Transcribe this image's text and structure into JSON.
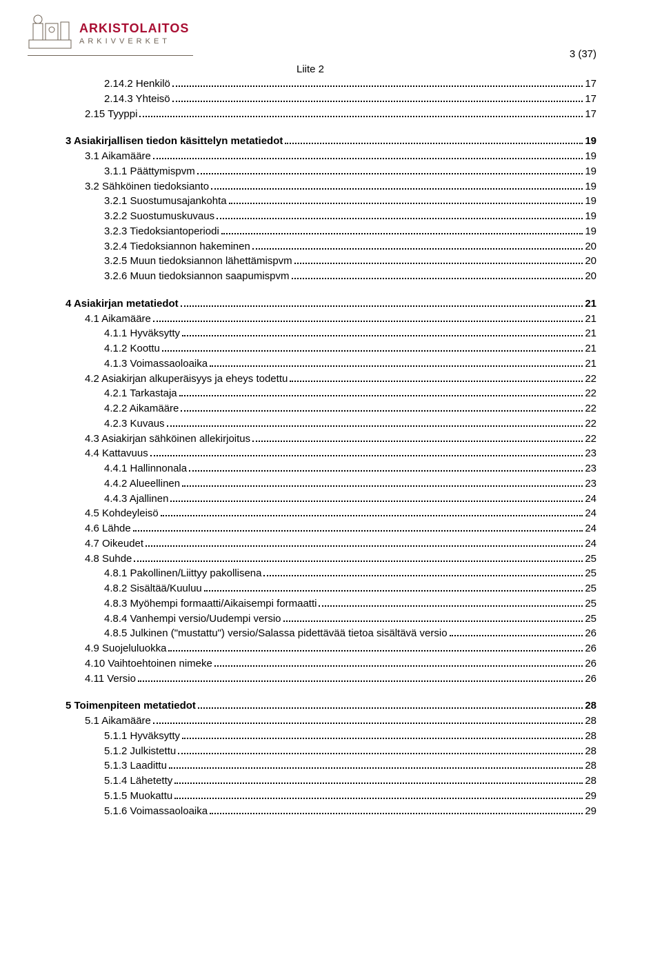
{
  "header": {
    "brand_title": "ARKISTOLAITOS",
    "brand_sub": "ARKIVVERKET",
    "logo_color": "#a80e32",
    "caption_color": "#6f6356"
  },
  "page_number": "3 (37)",
  "appendix_label": "Liite 2",
  "toc": [
    {
      "indent": 2,
      "label": "2.14.2 Henkilö",
      "page": "17",
      "bold": false,
      "section": false
    },
    {
      "indent": 2,
      "label": "2.14.3 Yhteisö",
      "page": "17",
      "bold": false,
      "section": false
    },
    {
      "indent": 1,
      "label": "2.15 Tyyppi",
      "page": "17",
      "bold": false,
      "section": false
    },
    {
      "indent": 0,
      "label": "3 Asiakirjallisen tiedon käsittelyn metatiedot",
      "page": "19",
      "bold": true,
      "section": true
    },
    {
      "indent": 1,
      "label": "3.1 Aikamääre",
      "page": "19",
      "bold": false,
      "section": false
    },
    {
      "indent": 2,
      "label": "3.1.1 Päättymispvm",
      "page": "19",
      "bold": false,
      "section": false
    },
    {
      "indent": 1,
      "label": "3.2 Sähköinen tiedoksianto",
      "page": "19",
      "bold": false,
      "section": false
    },
    {
      "indent": 2,
      "label": "3.2.1 Suostumusajankohta",
      "page": "19",
      "bold": false,
      "section": false
    },
    {
      "indent": 2,
      "label": "3.2.2 Suostumuskuvaus",
      "page": "19",
      "bold": false,
      "section": false
    },
    {
      "indent": 2,
      "label": "3.2.3 Tiedoksiantoperiodi",
      "page": "19",
      "bold": false,
      "section": false
    },
    {
      "indent": 2,
      "label": "3.2.4 Tiedoksiannon hakeminen",
      "page": "20",
      "bold": false,
      "section": false
    },
    {
      "indent": 2,
      "label": "3.2.5 Muun tiedoksiannon lähettämispvm",
      "page": "20",
      "bold": false,
      "section": false
    },
    {
      "indent": 2,
      "label": "3.2.6 Muun tiedoksiannon saapumispvm",
      "page": "20",
      "bold": false,
      "section": false
    },
    {
      "indent": 0,
      "label": "4 Asiakirjan metatiedot",
      "page": "21",
      "bold": true,
      "section": true
    },
    {
      "indent": 1,
      "label": "4.1 Aikamääre",
      "page": "21",
      "bold": false,
      "section": false
    },
    {
      "indent": 2,
      "label": "4.1.1 Hyväksytty",
      "page": "21",
      "bold": false,
      "section": false
    },
    {
      "indent": 2,
      "label": "4.1.2 Koottu",
      "page": "21",
      "bold": false,
      "section": false
    },
    {
      "indent": 2,
      "label": "4.1.3 Voimassaoloaika",
      "page": "21",
      "bold": false,
      "section": false
    },
    {
      "indent": 1,
      "label": "4.2 Asiakirjan alkuperäisyys ja eheys todettu",
      "page": "22",
      "bold": false,
      "section": false
    },
    {
      "indent": 2,
      "label": "4.2.1 Tarkastaja",
      "page": "22",
      "bold": false,
      "section": false
    },
    {
      "indent": 2,
      "label": "4.2.2 Aikamääre",
      "page": "22",
      "bold": false,
      "section": false
    },
    {
      "indent": 2,
      "label": "4.2.3 Kuvaus",
      "page": "22",
      "bold": false,
      "section": false
    },
    {
      "indent": 1,
      "label": "4.3 Asiakirjan sähköinen allekirjoitus",
      "page": "22",
      "bold": false,
      "section": false
    },
    {
      "indent": 1,
      "label": "4.4 Kattavuus",
      "page": "23",
      "bold": false,
      "section": false
    },
    {
      "indent": 2,
      "label": "4.4.1 Hallinnonala",
      "page": "23",
      "bold": false,
      "section": false
    },
    {
      "indent": 2,
      "label": "4.4.2 Alueellinen",
      "page": "23",
      "bold": false,
      "section": false
    },
    {
      "indent": 2,
      "label": "4.4.3 Ajallinen",
      "page": "24",
      "bold": false,
      "section": false
    },
    {
      "indent": 1,
      "label": "4.5 Kohdeyleisö",
      "page": "24",
      "bold": false,
      "section": false
    },
    {
      "indent": 1,
      "label": "4.6 Lähde",
      "page": "24",
      "bold": false,
      "section": false
    },
    {
      "indent": 1,
      "label": "4.7 Oikeudet",
      "page": "24",
      "bold": false,
      "section": false
    },
    {
      "indent": 1,
      "label": "4.8 Suhde",
      "page": "25",
      "bold": false,
      "section": false
    },
    {
      "indent": 2,
      "label": "4.8.1 Pakollinen/Liittyy pakollisena",
      "page": "25",
      "bold": false,
      "section": false
    },
    {
      "indent": 2,
      "label": "4.8.2 Sisältää/Kuuluu",
      "page": "25",
      "bold": false,
      "section": false
    },
    {
      "indent": 2,
      "label": "4.8.3 Myöhempi formaatti/Aikaisempi formaatti",
      "page": "25",
      "bold": false,
      "section": false
    },
    {
      "indent": 2,
      "label": "4.8.4 Vanhempi versio/Uudempi versio",
      "page": "25",
      "bold": false,
      "section": false
    },
    {
      "indent": 2,
      "label": "4.8.5 Julkinen (\"mustattu\") versio/Salassa pidettävää tietoa sisältävä versio",
      "page": "26",
      "bold": false,
      "section": false
    },
    {
      "indent": 1,
      "label": "4.9 Suojeluluokka",
      "page": "26",
      "bold": false,
      "section": false
    },
    {
      "indent": 1,
      "label": "4.10 Vaihtoehtoinen nimeke",
      "page": "26",
      "bold": false,
      "section": false
    },
    {
      "indent": 1,
      "label": "4.11 Versio",
      "page": "26",
      "bold": false,
      "section": false
    },
    {
      "indent": 0,
      "label": "5 Toimenpiteen metatiedot",
      "page": "28",
      "bold": true,
      "section": true
    },
    {
      "indent": 1,
      "label": "5.1 Aikamääre",
      "page": "28",
      "bold": false,
      "section": false
    },
    {
      "indent": 2,
      "label": "5.1.1 Hyväksytty",
      "page": "28",
      "bold": false,
      "section": false
    },
    {
      "indent": 2,
      "label": "5.1.2 Julkistettu",
      "page": "28",
      "bold": false,
      "section": false
    },
    {
      "indent": 2,
      "label": "5.1.3 Laadittu",
      "page": "28",
      "bold": false,
      "section": false
    },
    {
      "indent": 2,
      "label": "5.1.4 Lähetetty",
      "page": "28",
      "bold": false,
      "section": false
    },
    {
      "indent": 2,
      "label": "5.1.5 Muokattu",
      "page": "29",
      "bold": false,
      "section": false
    },
    {
      "indent": 2,
      "label": "5.1.6 Voimassaoloaika",
      "page": "29",
      "bold": false,
      "section": false
    }
  ]
}
